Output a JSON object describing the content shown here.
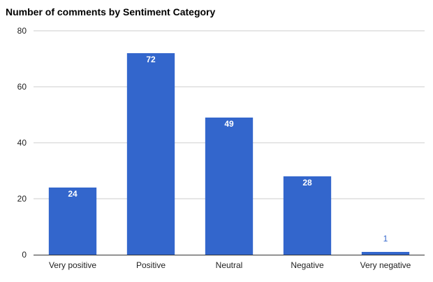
{
  "chart_data": {
    "type": "bar",
    "title": "Number of comments by Sentiment Category",
    "categories": [
      "Very positive",
      "Positive",
      "Neutral",
      "Negative",
      "Very negative"
    ],
    "values": [
      24,
      72,
      49,
      28,
      1
    ],
    "xlabel": "",
    "ylabel": "",
    "ylim": [
      0,
      80
    ],
    "yticks": [
      0,
      20,
      40,
      60,
      80
    ],
    "grid": true,
    "legend": "none",
    "colors": {
      "bar": "#3366cc",
      "label_inside": "#ffffff",
      "label_outside": "#3366cc",
      "grid": "#cccccc",
      "baseline": "#333333",
      "tick_text": "#222222"
    }
  }
}
